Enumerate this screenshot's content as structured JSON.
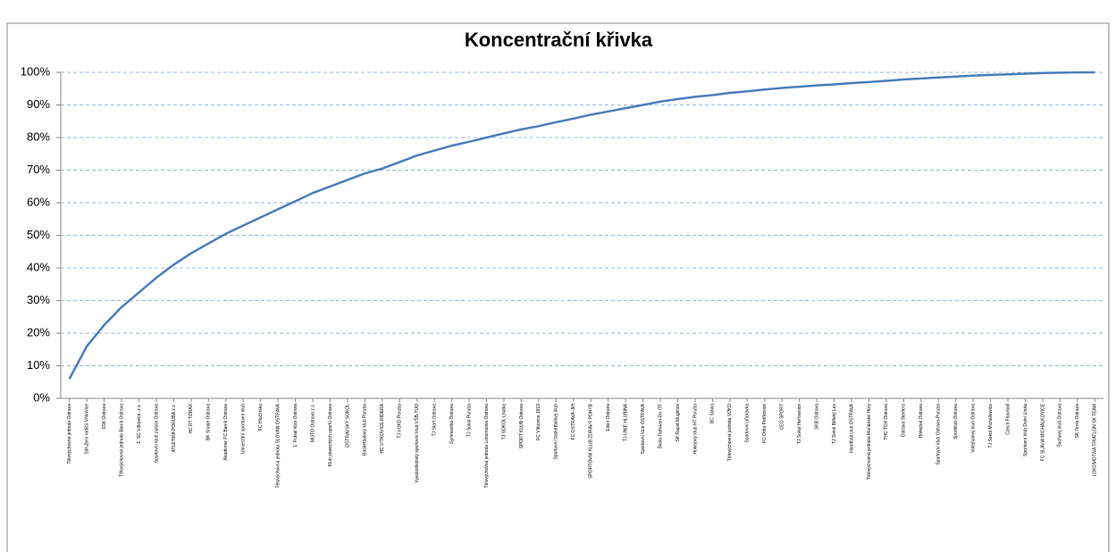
{
  "chart_data": {
    "type": "line",
    "title": "Koncentrační křivka",
    "categories": [
      "Tělovýchovná jednota Ostrava",
      "Sdružení rodičů Vítkovice",
      "SSK Ostrava",
      "Tělovýchovná jednota Baník Ostrava",
      "1. SC Vítkovice, z.s.",
      "Sportovní klub policie Ostrava",
      "ATLETIKA PORUBA z.s.",
      "HC RT TORAX",
      "BK Snake Ostrava",
      "Akademie FC Baník Ostrava",
      "Univerzitní sportovní klub",
      "FC Hlučínsko",
      "Tělovýchovná jednota SLOVAN OSTRAVA",
      "1. Futsal klub Ostrava",
      "MOTO Ostrava z.s.",
      "Klub plaveckých sportů Ostrava",
      "OSTRAVSKÝ SOKOL",
      "Basketbalový klub Poruba",
      "HC VÍTKOVICE RIDERA",
      "TJ VOKD Poruba",
      "Vysokoškolský sportovní klub VŠB-TUO",
      "TJ Start Ostrava",
      "Gymnastika Ostrava",
      "TJ Sokol Poruba",
      "Tělovýchovná jednota Lokomotiva Ostrava",
      "TJ SOKOL Lhotka",
      "SPORT KLUB Ostrava",
      "FC Vítkovice 1919",
      "Sportovní basketbalový klub",
      "FC OSTRAVA-JIH",
      "SPORTOVNÍ KLUB ZDRAVÝ POHYB",
      "Eden Ostrava",
      "TJ UNIE HLUBINA",
      "Sportovní klub OSTRAVA",
      "Škola Taekwon-Do ITF",
      "SK Rapid Muglinov",
      "Hokejový klub HT Poruba",
      "BC Slavia",
      "Tělovýchovná jednota VOKD",
      "Sportovní přípravka",
      "FC Odra Petřkovice",
      "CEO SPORT",
      "TJ Sokol Heřmanice",
      "SKB Ostrava",
      "TJ Sokol Bělský Les",
      "Handball club OSTRAVA",
      "Tělovýchovná jednota Mariánské Hory",
      "THC TOX Ostrava",
      "Ostrava Steelers",
      "Hokejbal Ostrava",
      "Sportovní klub Ostrava-Poruba",
      "Sportklub Ostrava",
      "Volejbalový klub Ostrava",
      "TJ Sokol Michálkovice",
      "Czech Floorball",
      "Sportovní klub Dolní Lhota",
      "FC SLAVIA MICHÁLKOVICE",
      "Šachový klub Ostrava",
      "SK Tenis Ostrava",
      "LOKOMOTIVA TRIATLON SK TEAM"
    ],
    "series": [
      {
        "color": "#4a7ebb",
        "values": [
          6,
          16,
          22.5,
          28,
          32.5,
          37,
          41,
          44.5,
          47.5,
          50.5,
          53,
          55.5,
          58,
          60.5,
          63,
          65,
          67,
          69,
          70.5,
          72.5,
          74.5,
          76,
          77.5,
          78.7,
          80,
          81.3,
          82.5,
          83.5,
          84.7,
          85.8,
          87,
          88,
          89,
          90,
          91,
          91.8,
          92.5,
          93,
          93.7,
          94.2,
          94.7,
          95.2,
          95.6,
          96,
          96.3,
          96.7,
          97,
          97.4,
          97.8,
          98.1,
          98.4,
          98.7,
          99,
          99.2,
          99.4,
          99.6,
          99.8,
          99.9,
          100,
          100
        ]
      }
    ],
    "ylim": [
      0,
      100
    ],
    "yticks": [
      {
        "value": 0,
        "label": "0%"
      },
      {
        "value": 10,
        "label": "10%"
      },
      {
        "value": 20,
        "label": "20%"
      },
      {
        "value": 30,
        "label": "30%"
      },
      {
        "value": 40,
        "label": "40%"
      },
      {
        "value": 50,
        "label": "50%"
      },
      {
        "value": 60,
        "label": "60%"
      },
      {
        "value": 70,
        "label": "70%"
      },
      {
        "value": 80,
        "label": "80%"
      },
      {
        "value": 90,
        "label": "90%"
      },
      {
        "value": 100,
        "label": "100%"
      }
    ],
    "grid": true
  }
}
